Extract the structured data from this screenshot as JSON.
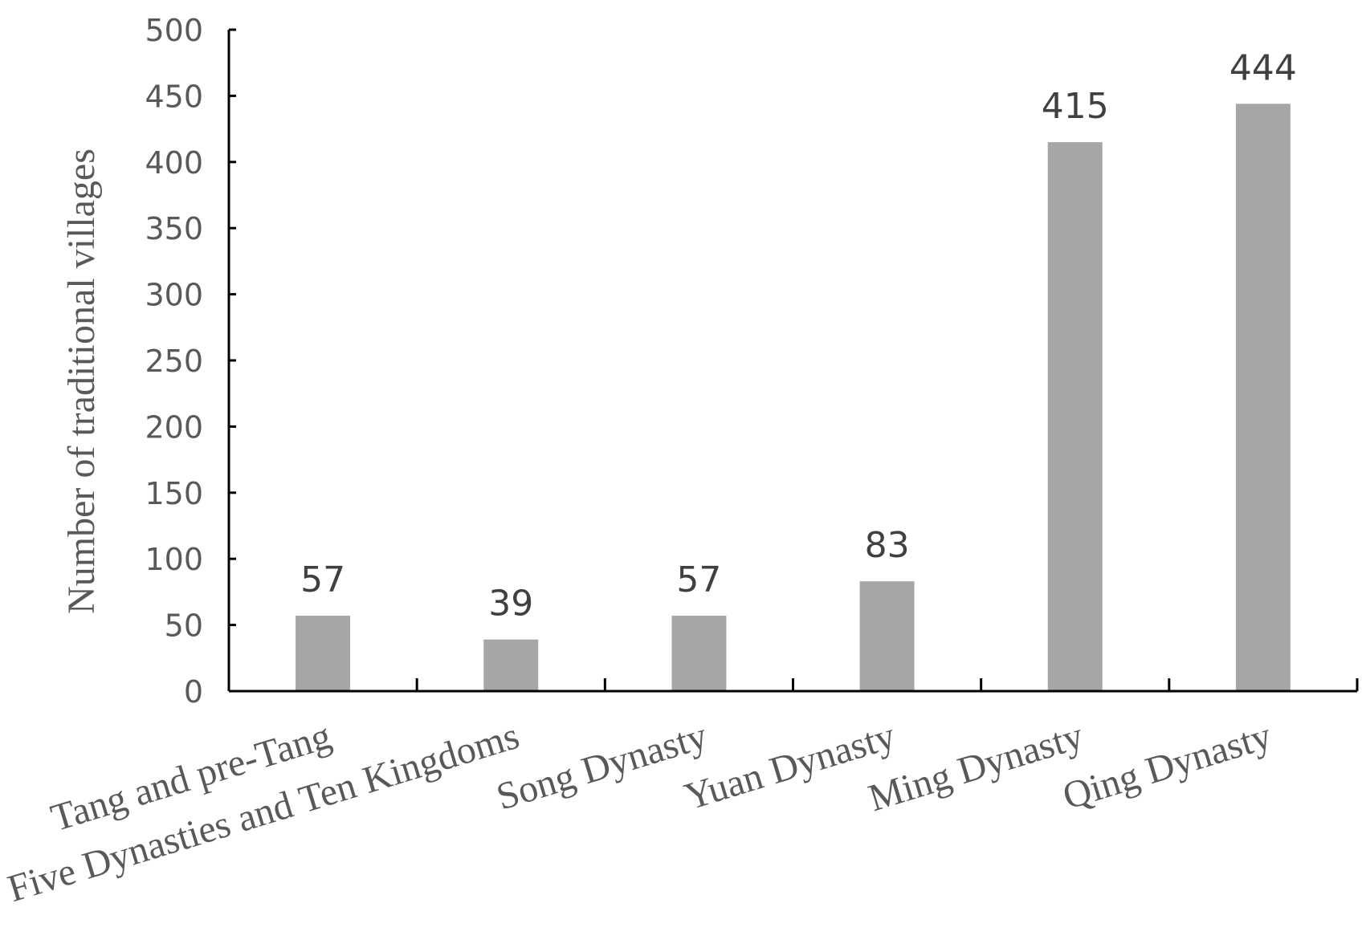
{
  "chart_data": {
    "type": "bar",
    "ylabel": "Number of traditional villages",
    "xlabel": "",
    "categories": [
      "Tang and pre-Tang",
      "Five Dynasties and Ten Kingdoms",
      "Song Dynasty",
      "Yuan Dynasty",
      "Ming Dynasty",
      "Qing Dynasty"
    ],
    "values": [
      57,
      39,
      57,
      83,
      415,
      444
    ],
    "data_labels": [
      "57",
      "39",
      "57",
      "83",
      "415",
      "444"
    ],
    "ylim": [
      0,
      500
    ],
    "yticks": [
      "0",
      "50",
      "100",
      "150",
      "200",
      "250",
      "300",
      "350",
      "400",
      "450",
      "500"
    ],
    "grid": false,
    "legend": "none",
    "bar_color": "#a6a6a6"
  }
}
